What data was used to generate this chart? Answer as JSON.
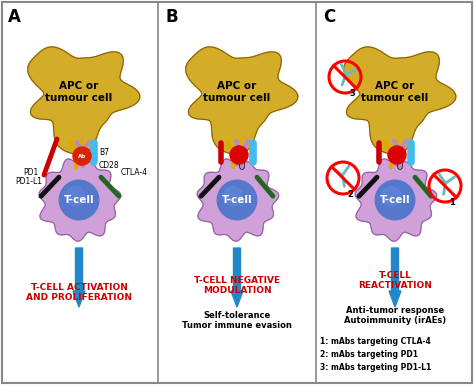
{
  "background_color": "#ffffff",
  "border_color": "#888888",
  "panel_labels": [
    "A",
    "B",
    "C"
  ],
  "panel_titles_red": [
    "T-CELL ACTIVATION\nAND PROLIFERATION",
    "T-CELL NEGATIVE\nMODULATION",
    "T-CELL\nREACTIVATION"
  ],
  "panel_subtitles_B": "Self-tolerance\nTumor immune evasion",
  "panel_subtitles_C": "Anti-tumor response\nAutoimmunity (irAEs)",
  "legend_lines": [
    "1: mAbs targeting CTLA-4",
    "2: mAbs targeting PD1",
    "3: mAbs targeting PD1-L1"
  ],
  "apc_label": "APC or\ntumour cell",
  "tcell_label": "T-cell",
  "arrow_color": "#2288cc",
  "red_text_color": "#cc0000",
  "line_colors": {
    "PD1L1": "#cc0000",
    "B7": "#ddaa00",
    "CD28": "#bb88cc",
    "PD1": "#111111",
    "CTLA4": "#226622",
    "cyan_bar": "#44bbee"
  }
}
